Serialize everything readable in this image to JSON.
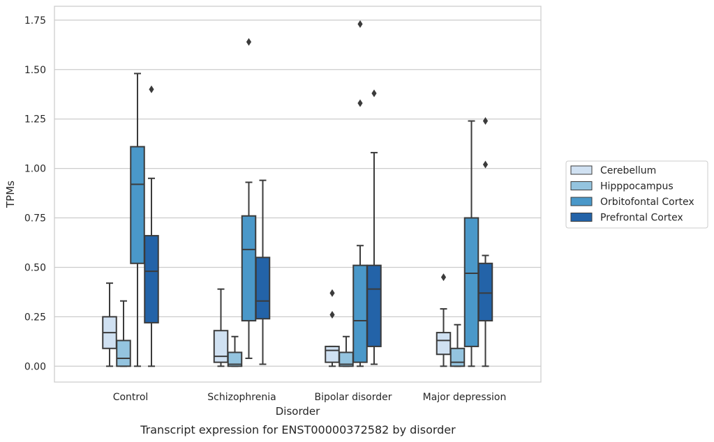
{
  "chart_data": {
    "type": "box",
    "caption": "Transcript expression for ENST00000372582 by disorder",
    "xlabel": "Disorder",
    "ylabel": "TPMs",
    "ylim": [
      -0.08,
      1.82
    ],
    "y_ticks": [
      "0.00",
      "0.25",
      "0.50",
      "0.75",
      "1.00",
      "1.25",
      "1.50",
      "1.75"
    ],
    "grid": "horizontal",
    "legend_position": "right",
    "categories": [
      "Control",
      "Schizophrenia",
      "Bipolar disorder",
      "Major depression"
    ],
    "series": [
      {
        "name": "Cerebellum",
        "color": "#d0e1f2",
        "boxes": [
          {
            "whisker_low": 0.0,
            "q1": 0.09,
            "median": 0.17,
            "q3": 0.25,
            "whisker_high": 0.42,
            "outliers": []
          },
          {
            "whisker_low": 0.0,
            "q1": 0.02,
            "median": 0.05,
            "q3": 0.18,
            "whisker_high": 0.39,
            "outliers": []
          },
          {
            "whisker_low": 0.0,
            "q1": 0.02,
            "median": 0.08,
            "q3": 0.1,
            "whisker_high": 0.1,
            "outliers": [
              0.26,
              0.37
            ]
          },
          {
            "whisker_low": 0.0,
            "q1": 0.06,
            "median": 0.13,
            "q3": 0.17,
            "whisker_high": 0.29,
            "outliers": [
              0.45
            ]
          }
        ]
      },
      {
        "name": "Hipppocampus",
        "color": "#94c4df",
        "boxes": [
          {
            "whisker_low": 0.0,
            "q1": 0.0,
            "median": 0.04,
            "q3": 0.13,
            "whisker_high": 0.33,
            "outliers": []
          },
          {
            "whisker_low": 0.0,
            "q1": 0.0,
            "median": 0.01,
            "q3": 0.07,
            "whisker_high": 0.15,
            "outliers": []
          },
          {
            "whisker_low": 0.0,
            "q1": 0.0,
            "median": 0.01,
            "q3": 0.07,
            "whisker_high": 0.15,
            "outliers": []
          },
          {
            "whisker_low": 0.0,
            "q1": 0.0,
            "median": 0.02,
            "q3": 0.09,
            "whisker_high": 0.21,
            "outliers": []
          }
        ]
      },
      {
        "name": "Orbitofontal Cortex",
        "color": "#4a98c9",
        "boxes": [
          {
            "whisker_low": 0.0,
            "q1": 0.52,
            "median": 0.92,
            "q3": 1.11,
            "whisker_high": 1.48,
            "outliers": []
          },
          {
            "whisker_low": 0.04,
            "q1": 0.23,
            "median": 0.59,
            "q3": 0.76,
            "whisker_high": 0.93,
            "outliers": [
              1.64
            ]
          },
          {
            "whisker_low": 0.0,
            "q1": 0.02,
            "median": 0.23,
            "q3": 0.51,
            "whisker_high": 0.61,
            "outliers": [
              1.33,
              1.73
            ]
          },
          {
            "whisker_low": 0.0,
            "q1": 0.1,
            "median": 0.47,
            "q3": 0.75,
            "whisker_high": 1.24,
            "outliers": []
          }
        ]
      },
      {
        "name": "Prefrontal Cortex",
        "color": "#2363a8",
        "boxes": [
          {
            "whisker_low": 0.0,
            "q1": 0.22,
            "median": 0.48,
            "q3": 0.66,
            "whisker_high": 0.95,
            "outliers": [
              1.4
            ]
          },
          {
            "whisker_low": 0.01,
            "q1": 0.24,
            "median": 0.33,
            "q3": 0.55,
            "whisker_high": 0.94,
            "outliers": []
          },
          {
            "whisker_low": 0.01,
            "q1": 0.1,
            "median": 0.39,
            "q3": 0.51,
            "whisker_high": 1.08,
            "outliers": [
              1.38
            ]
          },
          {
            "whisker_low": 0.0,
            "q1": 0.23,
            "median": 0.37,
            "q3": 0.52,
            "whisker_high": 0.56,
            "outliers": [
              1.02,
              1.24
            ]
          }
        ]
      }
    ]
  }
}
